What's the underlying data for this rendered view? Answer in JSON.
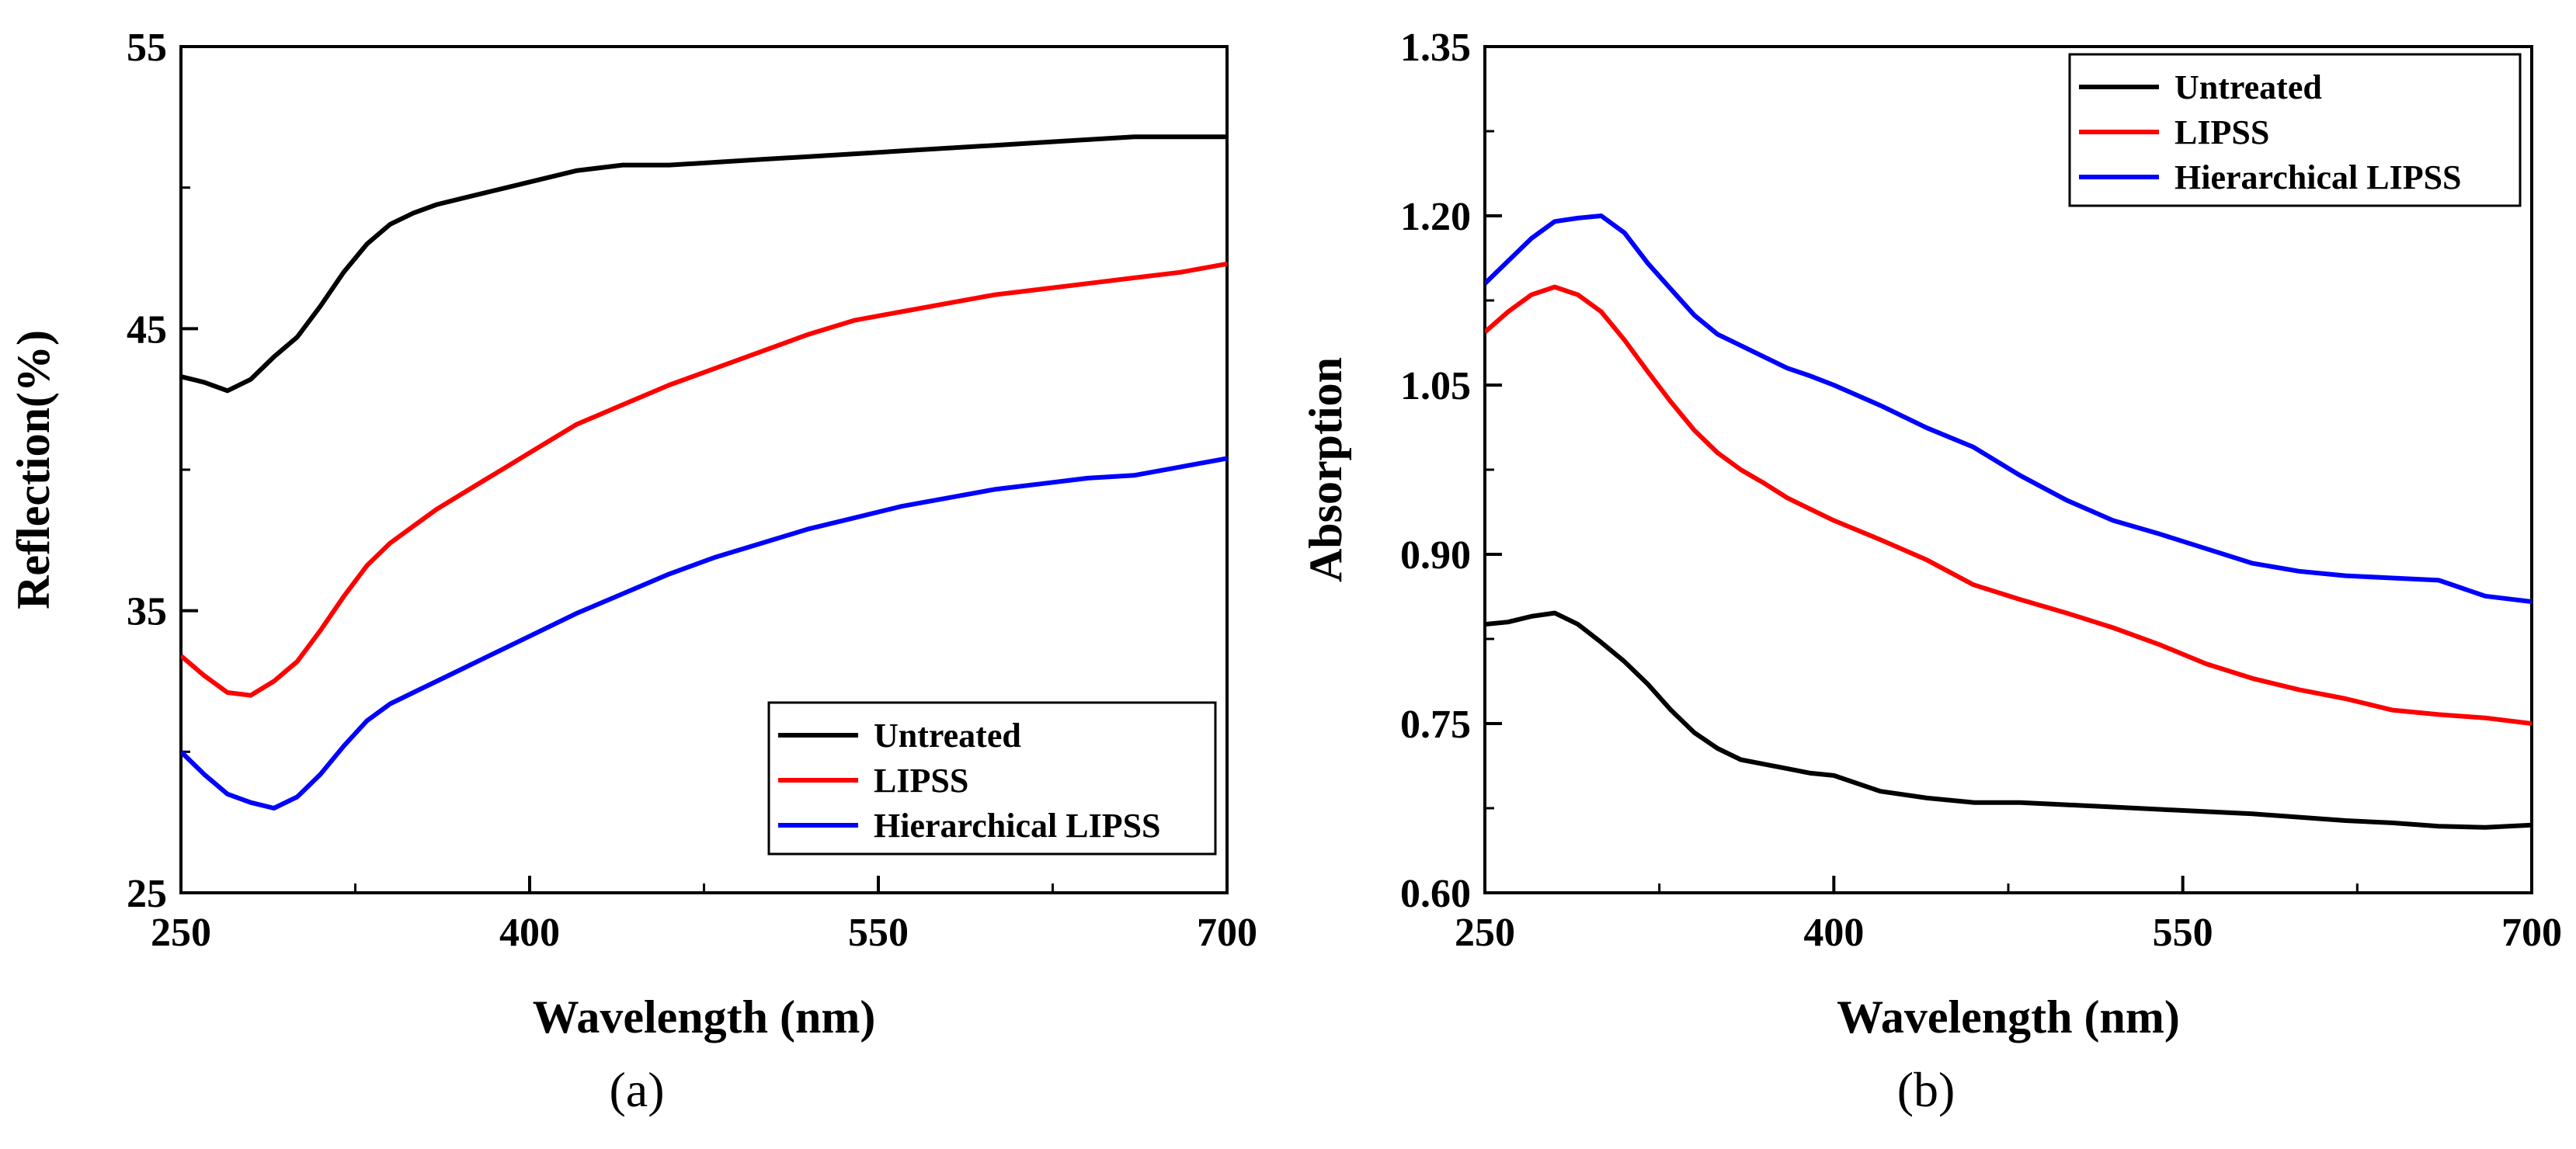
{
  "colors": {
    "untreated": "#000000",
    "lipss": "#ff0000",
    "hierarchical": "#0000ff",
    "axis": "#000000"
  },
  "chart_data": [
    {
      "type": "line",
      "panel_label": "(a)",
      "xlabel": "Wavelength (nm)",
      "ylabel": "Reflection(%)",
      "xlim": [
        250,
        700
      ],
      "ylim": [
        25,
        55
      ],
      "xticks": [
        250,
        400,
        550,
        700
      ],
      "yticks": [
        25,
        35,
        45,
        55
      ],
      "legend_position": "bottom-right",
      "x": [
        250,
        260,
        270,
        280,
        290,
        300,
        310,
        320,
        330,
        340,
        350,
        360,
        370,
        380,
        390,
        400,
        420,
        440,
        460,
        480,
        500,
        520,
        540,
        560,
        580,
        600,
        620,
        640,
        660,
        680,
        700
      ],
      "series": [
        {
          "name": "Untreated",
          "color_key": "untreated",
          "values": [
            43.3,
            43.1,
            42.8,
            43.2,
            44.0,
            44.7,
            45.8,
            47.0,
            48.0,
            48.7,
            49.1,
            49.4,
            49.6,
            49.8,
            50.0,
            50.2,
            50.6,
            50.8,
            50.8,
            50.9,
            51.0,
            51.1,
            51.2,
            51.3,
            51.4,
            51.5,
            51.6,
            51.7,
            51.8,
            51.8,
            51.8
          ]
        },
        {
          "name": "LIPSS",
          "color_key": "lipss",
          "values": [
            33.4,
            32.7,
            32.1,
            32.0,
            32.5,
            33.2,
            34.3,
            35.5,
            36.6,
            37.4,
            38.0,
            38.6,
            39.1,
            39.6,
            40.1,
            40.6,
            41.6,
            42.3,
            43.0,
            43.6,
            44.2,
            44.8,
            45.3,
            45.6,
            45.9,
            46.2,
            46.4,
            46.6,
            46.8,
            47.0,
            47.3
          ]
        },
        {
          "name": "Hierarchical LIPSS",
          "color_key": "hierarchical",
          "values": [
            30.0,
            29.2,
            28.5,
            28.2,
            28.0,
            28.4,
            29.2,
            30.2,
            31.1,
            31.7,
            32.1,
            32.5,
            32.9,
            33.3,
            33.7,
            34.1,
            34.9,
            35.6,
            36.3,
            36.9,
            37.4,
            37.9,
            38.3,
            38.7,
            39.0,
            39.3,
            39.5,
            39.7,
            39.8,
            40.1,
            40.4
          ]
        }
      ]
    },
    {
      "type": "line",
      "panel_label": "(b)",
      "xlabel": "Wavelength (nm)",
      "ylabel": "Absorption",
      "xlim": [
        250,
        700
      ],
      "ylim": [
        0.6,
        1.35
      ],
      "xticks": [
        250,
        400,
        550,
        700
      ],
      "yticks": [
        0.6,
        0.75,
        0.9,
        1.05,
        1.2,
        1.35
      ],
      "legend_position": "top-right",
      "x": [
        250,
        260,
        270,
        280,
        290,
        300,
        310,
        320,
        330,
        340,
        350,
        360,
        370,
        380,
        390,
        400,
        420,
        440,
        460,
        480,
        500,
        520,
        540,
        560,
        580,
        600,
        620,
        640,
        660,
        680,
        700
      ],
      "series": [
        {
          "name": "Untreated",
          "color_key": "untreated",
          "values": [
            0.838,
            0.84,
            0.845,
            0.848,
            0.838,
            0.822,
            0.805,
            0.785,
            0.762,
            0.742,
            0.728,
            0.718,
            0.714,
            0.71,
            0.706,
            0.704,
            0.69,
            0.684,
            0.68,
            0.68,
            0.678,
            0.676,
            0.674,
            0.672,
            0.67,
            0.667,
            0.664,
            0.662,
            0.659,
            0.658,
            0.66
          ]
        },
        {
          "name": "LIPSS",
          "color_key": "lipss",
          "values": [
            1.097,
            1.115,
            1.13,
            1.137,
            1.13,
            1.115,
            1.09,
            1.062,
            1.035,
            1.01,
            0.99,
            0.975,
            0.963,
            0.95,
            0.94,
            0.93,
            0.913,
            0.895,
            0.873,
            0.86,
            0.848,
            0.835,
            0.82,
            0.803,
            0.79,
            0.78,
            0.772,
            0.762,
            0.758,
            0.755,
            0.75
          ]
        },
        {
          "name": "Hierarchical LIPSS",
          "color_key": "hierarchical",
          "values": [
            1.14,
            1.16,
            1.18,
            1.195,
            1.198,
            1.2,
            1.185,
            1.158,
            1.135,
            1.112,
            1.095,
            1.085,
            1.075,
            1.065,
            1.058,
            1.05,
            1.032,
            1.012,
            0.995,
            0.97,
            0.948,
            0.93,
            0.918,
            0.905,
            0.892,
            0.885,
            0.881,
            0.879,
            0.877,
            0.863,
            0.858
          ]
        }
      ]
    }
  ]
}
